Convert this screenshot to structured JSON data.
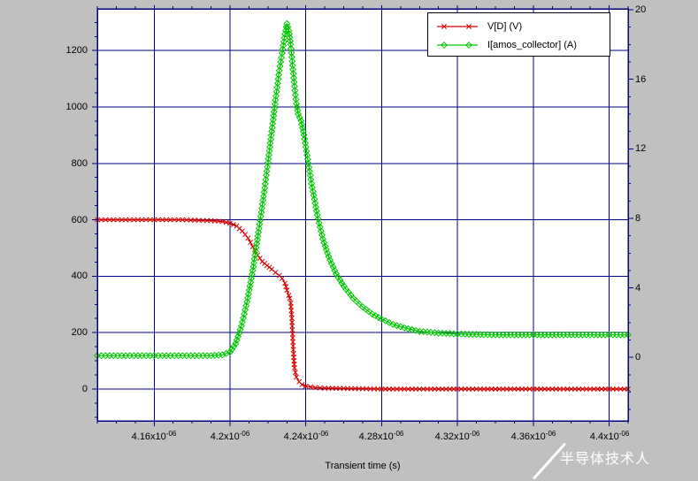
{
  "window": {
    "bg_color": "#c0c0c0"
  },
  "watermark": {
    "text": "半导体技术人"
  },
  "chart_data": {
    "type": "line",
    "title": "",
    "xlabel": "Transient time (s)",
    "grid": true,
    "legend_position": "top-right",
    "colors": {
      "grid": "#000080",
      "frame": "#000080",
      "plot_bg": "#ffffff"
    },
    "x_range": [
      4.13,
      4.41
    ],
    "x_ticks": [
      {
        "v": 4.16,
        "m": "4.16x10",
        "e": "-06"
      },
      {
        "v": 4.2,
        "m": "4.2x10",
        "e": "-06"
      },
      {
        "v": 4.24,
        "m": "4.24x10",
        "e": "-06"
      },
      {
        "v": 4.28,
        "m": "4.28x10",
        "e": "-06"
      },
      {
        "v": 4.32,
        "m": "4.32x10",
        "e": "-06"
      },
      {
        "v": 4.36,
        "m": "4.36x10",
        "e": "-06"
      },
      {
        "v": 4.4,
        "m": "4.4x10",
        "e": "-06"
      }
    ],
    "x_minor_step": 0.01,
    "left_axis": {
      "range": [
        -113,
        1348
      ],
      "ticks": [
        0,
        200,
        400,
        600,
        800,
        1000,
        1200
      ],
      "minor_step": 50
    },
    "right_axis": {
      "range": [
        -3.65,
        20.05
      ],
      "ticks": [
        0,
        4,
        8,
        12,
        16,
        20
      ],
      "minor_step": 1
    },
    "series": [
      {
        "name": "V[D] (V)",
        "axis": "left",
        "color": "#d40000",
        "marker": "x",
        "x": [
          4.13,
          4.145,
          4.16,
          4.175,
          4.19,
          4.196,
          4.2,
          4.2035,
          4.2065,
          4.2095,
          4.212,
          4.2145,
          4.217,
          4.2195,
          4.222,
          4.224,
          4.226,
          4.2275,
          4.229,
          4.23,
          4.231,
          4.2315,
          4.232,
          4.2325,
          4.233,
          4.2335,
          4.234,
          4.235,
          4.2365,
          4.238,
          4.24,
          4.245,
          4.25,
          4.26,
          4.27,
          4.28,
          4.3,
          4.32,
          4.34,
          4.36,
          4.38,
          4.4,
          4.41
        ],
        "y": [
          600,
          600,
          600,
          600,
          597,
          594,
          588,
          578,
          560,
          535,
          505,
          475,
          452,
          438,
          425,
          413,
          402,
          392,
          375,
          350,
          332,
          322,
          305,
          265,
          195,
          125,
          75,
          42,
          26,
          16,
          10,
          5,
          3,
          2,
          1,
          0,
          0,
          0,
          0,
          0,
          0,
          0,
          0
        ]
      },
      {
        "name": "I[amos_collector] (A)",
        "axis": "right",
        "color": "#00c800",
        "marker": "diamond",
        "x": [
          4.13,
          4.145,
          4.16,
          4.175,
          4.19,
          4.196,
          4.2,
          4.203,
          4.206,
          4.209,
          4.212,
          4.215,
          4.218,
          4.22,
          4.222,
          4.224,
          4.226,
          4.2275,
          4.229,
          4.23,
          4.231,
          4.232,
          4.233,
          4.234,
          4.235,
          4.236,
          4.2375,
          4.239,
          4.241,
          4.243,
          4.246,
          4.249,
          4.252,
          4.256,
          4.26,
          4.265,
          4.27,
          4.275,
          4.28,
          4.286,
          4.292,
          4.3,
          4.31,
          4.32,
          4.34,
          4.36,
          4.38,
          4.4,
          4.41
        ],
        "y": [
          0.1,
          0.1,
          0.1,
          0.1,
          0.1,
          0.15,
          0.3,
          0.8,
          1.8,
          3.2,
          5.0,
          7.2,
          9.5,
          11.2,
          13.0,
          14.8,
          16.5,
          17.5,
          18.6,
          19.2,
          18.8,
          18.0,
          16.8,
          15.6,
          14.6,
          14.0,
          13.6,
          12.8,
          11.4,
          10.0,
          8.2,
          6.8,
          5.8,
          4.8,
          4.1,
          3.4,
          2.9,
          2.5,
          2.2,
          1.9,
          1.7,
          1.5,
          1.4,
          1.35,
          1.3,
          1.3,
          1.3,
          1.3,
          1.3
        ]
      }
    ]
  }
}
